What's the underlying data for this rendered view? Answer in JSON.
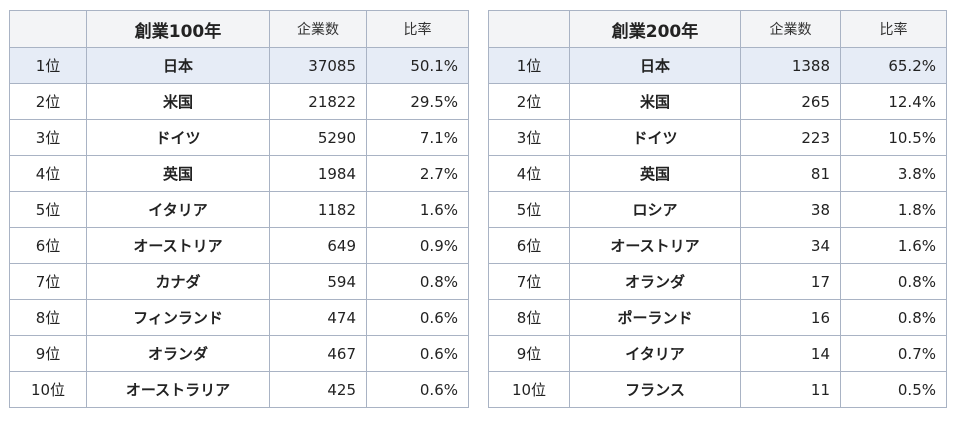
{
  "tables": [
    {
      "headers": {
        "rank": "",
        "name": "創業100年",
        "count": "企業数",
        "ratio": "比率"
      },
      "highlight_color": "#e6ecf6",
      "rows": [
        {
          "rank": "1位",
          "country": "日本",
          "count": "37085",
          "ratio": "50.1%"
        },
        {
          "rank": "2位",
          "country": "米国",
          "count": "21822",
          "ratio": "29.5%"
        },
        {
          "rank": "3位",
          "country": "ドイツ",
          "count": "5290",
          "ratio": "7.1%"
        },
        {
          "rank": "4位",
          "country": "英国",
          "count": "1984",
          "ratio": "2.7%"
        },
        {
          "rank": "5位",
          "country": "イタリア",
          "count": "1182",
          "ratio": "1.6%"
        },
        {
          "rank": "6位",
          "country": "オーストリア",
          "count": "649",
          "ratio": "0.9%"
        },
        {
          "rank": "7位",
          "country": "カナダ",
          "count": "594",
          "ratio": "0.8%"
        },
        {
          "rank": "8位",
          "country": "フィンランド",
          "count": "474",
          "ratio": "0.6%"
        },
        {
          "rank": "9位",
          "country": "オランダ",
          "count": "467",
          "ratio": "0.6%"
        },
        {
          "rank": "10位",
          "country": "オーストラリア",
          "count": "425",
          "ratio": "0.6%"
        }
      ]
    },
    {
      "headers": {
        "rank": "",
        "name": "創業200年",
        "count": "企業数",
        "ratio": "比率"
      },
      "highlight_color": "#e6ecf6",
      "rows": [
        {
          "rank": "1位",
          "country": "日本",
          "count": "1388",
          "ratio": "65.2%"
        },
        {
          "rank": "2位",
          "country": "米国",
          "count": "265",
          "ratio": "12.4%"
        },
        {
          "rank": "3位",
          "country": "ドイツ",
          "count": "223",
          "ratio": "10.5%"
        },
        {
          "rank": "4位",
          "country": "英国",
          "count": "81",
          "ratio": "3.8%"
        },
        {
          "rank": "5位",
          "country": "ロシア",
          "count": "38",
          "ratio": "1.8%"
        },
        {
          "rank": "6位",
          "country": "オーストリア",
          "count": "34",
          "ratio": "1.6%"
        },
        {
          "rank": "7位",
          "country": "オランダ",
          "count": "17",
          "ratio": "0.8%"
        },
        {
          "rank": "8位",
          "country": "ポーランド",
          "count": "16",
          "ratio": "0.8%"
        },
        {
          "rank": "9位",
          "country": "イタリア",
          "count": "14",
          "ratio": "0.7%"
        },
        {
          "rank": "10位",
          "country": "フランス",
          "count": "11",
          "ratio": "0.5%"
        }
      ]
    }
  ]
}
